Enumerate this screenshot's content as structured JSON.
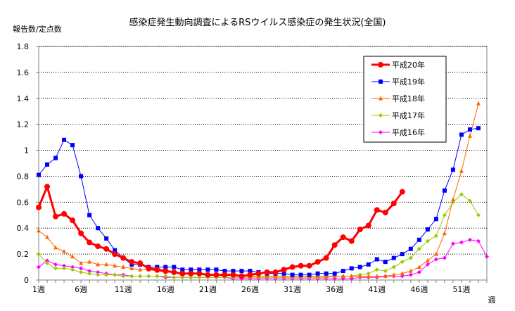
{
  "chart_data": {
    "type": "line",
    "title": "感染症発生動向調査によるRSウイルス感染症の発生状況(全国)",
    "ylabel": "報告数/定点数",
    "xlabel": "週",
    "ylim": [
      0,
      1.8
    ],
    "yticks": [
      "0",
      "0.2",
      "0.4",
      "0.6",
      "0.8",
      "1",
      "1.2",
      "1.4",
      "1.6",
      "1.8"
    ],
    "xticks": [
      "1週",
      "6週",
      "11週",
      "16週",
      "21週",
      "26週",
      "31週",
      "36週",
      "41週",
      "46週",
      "51週"
    ],
    "xtick_weeks": [
      1,
      6,
      11,
      16,
      21,
      26,
      31,
      36,
      41,
      46,
      51
    ],
    "grid": true,
    "legend_position": "top-right",
    "series": [
      {
        "name": "平成16年",
        "color": "#ff00ff",
        "marker": "diamond",
        "lineWidth": 1,
        "values": [
          0.1,
          0.15,
          0.12,
          0.11,
          0.1,
          0.09,
          0.07,
          0.06,
          0.05,
          0.04,
          0.04,
          0.03,
          0.03,
          0.03,
          0.03,
          0.02,
          0.02,
          0.02,
          0.02,
          0.02,
          0.02,
          0.02,
          0.02,
          0.01,
          0.01,
          0.01,
          0.01,
          0.01,
          0.01,
          0.01,
          0.01,
          0.01,
          0.01,
          0.01,
          0.01,
          0.01,
          0.01,
          0.01,
          0.02,
          0.02,
          0.02,
          0.03,
          0.03,
          0.03,
          0.04,
          0.06,
          0.12,
          0.16,
          0.17,
          0.28,
          0.29,
          0.31,
          0.3,
          0.18
        ]
      },
      {
        "name": "平成17年",
        "color": "#99cc00",
        "marker": "diamond",
        "lineWidth": 1,
        "values": [
          0.2,
          0.13,
          0.09,
          0.09,
          0.08,
          0.06,
          0.05,
          0.04,
          0.04,
          0.04,
          0.03,
          0.03,
          0.03,
          0.03,
          0.03,
          0.03,
          0.02,
          0.02,
          0.02,
          0.02,
          0.02,
          0.02,
          0.02,
          0.02,
          0.02,
          0.02,
          0.02,
          0.02,
          0.02,
          0.02,
          0.02,
          0.02,
          0.02,
          0.02,
          0.02,
          0.03,
          0.03,
          0.03,
          0.04,
          0.05,
          0.08,
          0.07,
          0.1,
          0.14,
          0.17,
          0.24,
          0.3,
          0.34,
          0.5,
          0.6,
          0.66,
          0.61,
          0.5
        ]
      },
      {
        "name": "平成18年",
        "color": "#ff6600",
        "marker": "triangle",
        "lineWidth": 1,
        "values": [
          0.38,
          0.33,
          0.25,
          0.22,
          0.18,
          0.13,
          0.14,
          0.12,
          0.12,
          0.11,
          0.1,
          0.09,
          0.08,
          0.08,
          0.07,
          0.06,
          0.06,
          0.05,
          0.05,
          0.05,
          0.04,
          0.04,
          0.04,
          0.04,
          0.04,
          0.03,
          0.03,
          0.03,
          0.03,
          0.03,
          0.03,
          0.03,
          0.03,
          0.03,
          0.03,
          0.03,
          0.03,
          0.03,
          0.03,
          0.03,
          0.03,
          0.03,
          0.04,
          0.05,
          0.07,
          0.1,
          0.15,
          0.2,
          0.36,
          0.62,
          0.84,
          1.11,
          1.36
        ]
      },
      {
        "name": "平成19年",
        "color": "#0000ff",
        "marker": "square",
        "lineWidth": 1,
        "values": [
          0.81,
          0.89,
          0.94,
          1.08,
          1.04,
          0.8,
          0.5,
          0.4,
          0.32,
          0.23,
          0.17,
          0.12,
          0.12,
          0.1,
          0.1,
          0.1,
          0.1,
          0.08,
          0.08,
          0.08,
          0.08,
          0.08,
          0.07,
          0.07,
          0.07,
          0.07,
          0.06,
          0.05,
          0.05,
          0.05,
          0.04,
          0.04,
          0.04,
          0.05,
          0.05,
          0.05,
          0.07,
          0.09,
          0.1,
          0.12,
          0.16,
          0.14,
          0.17,
          0.2,
          0.24,
          0.31,
          0.39,
          0.47,
          0.69,
          0.85,
          1.12,
          1.16,
          1.17
        ]
      },
      {
        "name": "平成20年",
        "color": "#ff0000",
        "marker": "circle",
        "lineWidth": 3,
        "values": [
          0.56,
          0.72,
          0.49,
          0.51,
          0.46,
          0.36,
          0.29,
          0.26,
          0.24,
          0.2,
          0.17,
          0.14,
          0.13,
          0.09,
          0.08,
          0.07,
          0.06,
          0.05,
          0.05,
          0.05,
          0.04,
          0.04,
          0.04,
          0.04,
          0.03,
          0.04,
          0.05,
          0.06,
          0.06,
          0.08,
          0.1,
          0.11,
          0.11,
          0.14,
          0.17,
          0.27,
          0.33,
          0.3,
          0.39,
          0.42,
          0.54,
          0.52,
          0.59,
          0.68
        ]
      }
    ],
    "legend_order": [
      "平成20年",
      "平成19年",
      "平成18年",
      "平成17年",
      "平成16年"
    ]
  }
}
